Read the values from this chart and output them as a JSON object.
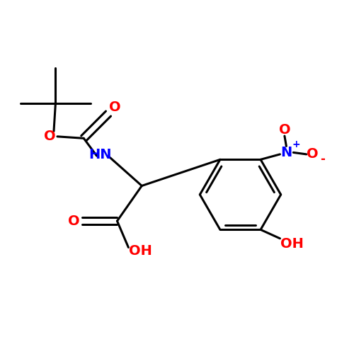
{
  "bg_color": "#ffffff",
  "bond_color": "#000000",
  "red_color": "#ff0000",
  "blue_color": "#0000ff",
  "line_width": 2.2,
  "font_size": 14,
  "figsize": [
    5.0,
    5.0
  ],
  "dpi": 100,
  "xlim": [
    0,
    10
  ],
  "ylim": [
    0,
    10
  ]
}
